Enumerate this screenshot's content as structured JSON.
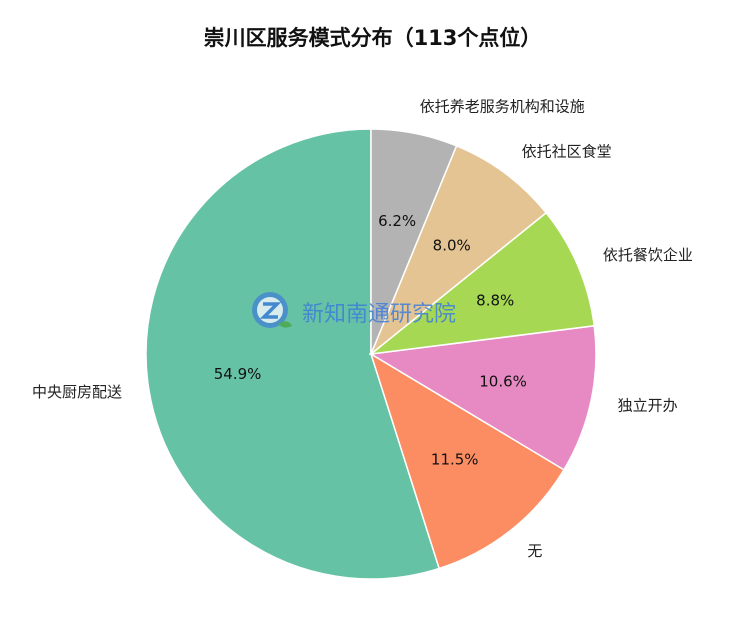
{
  "chart_data": {
    "type": "pie",
    "title": "崇川区服务模式分布（113个点位）",
    "start_angle_deg": 90,
    "direction": "counterclockwise",
    "slices": [
      {
        "label": "中央厨房配送",
        "value": 54.9,
        "pct_text": "54.9%",
        "color": "#66c2a5"
      },
      {
        "label": "无",
        "value": 11.5,
        "pct_text": "11.5%",
        "color": "#fc8d62"
      },
      {
        "label": "独立开办",
        "value": 10.6,
        "pct_text": "10.6%",
        "color": "#e78ac3"
      },
      {
        "label": "依托餐饮企业",
        "value": 8.8,
        "pct_text": "8.8%",
        "color": "#a6d854"
      },
      {
        "label": "依托社区食堂",
        "value": 8.0,
        "pct_text": "8.0%",
        "color": "#e5c494"
      },
      {
        "label": "依托养老服务机构和设施",
        "value": 6.2,
        "pct_text": "6.2%",
        "color": "#b3b3b3"
      }
    ]
  },
  "watermark": {
    "text": "新知南通研究院",
    "icon": "z-logo-icon",
    "colors": {
      "logo": "#3f7fd8",
      "leaf": "#4aa84a"
    }
  }
}
